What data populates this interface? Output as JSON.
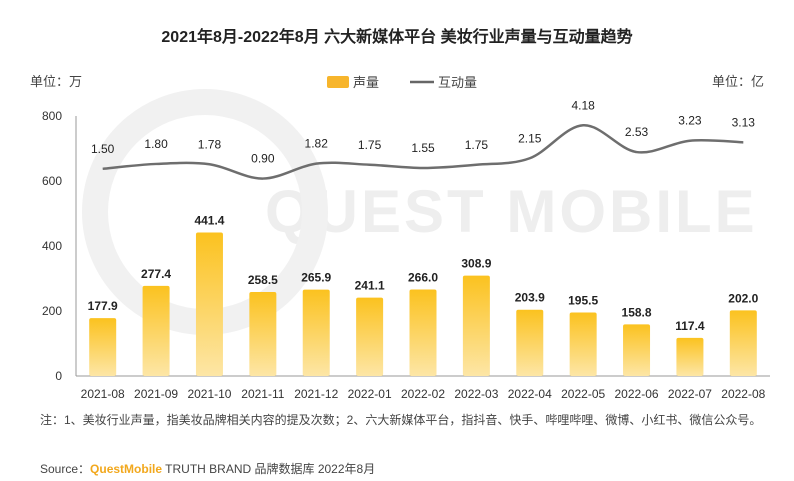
{
  "header": {
    "title": "2021年8月-2022年8月 六大新媒体平台 美妆行业声量与互动量趋势",
    "unit_left": "单位：万",
    "unit_right": "单位：亿"
  },
  "watermark": "QUEST MOBILE",
  "chart_data": {
    "type": "bar+line",
    "categories": [
      "2021-08",
      "2021-09",
      "2021-10",
      "2021-11",
      "2021-12",
      "2022-01",
      "2022-02",
      "2022-03",
      "2022-04",
      "2022-05",
      "2022-06",
      "2022-07",
      "2022-08"
    ],
    "series": [
      {
        "name": "声量",
        "type": "bar",
        "axis": "left",
        "color": "#f7b52c",
        "values": [
          177.9,
          277.4,
          441.4,
          258.5,
          265.9,
          241.1,
          266.0,
          308.9,
          203.9,
          195.5,
          158.8,
          117.4,
          202.0
        ]
      },
      {
        "name": "互动量",
        "type": "line",
        "axis": "right",
        "color": "#666666",
        "values": [
          1.5,
          1.8,
          1.78,
          0.9,
          1.82,
          1.75,
          1.55,
          1.75,
          2.15,
          4.18,
          2.53,
          3.23,
          3.13
        ]
      }
    ],
    "y_left": {
      "ticks": [
        0,
        200,
        400,
        600,
        800
      ],
      "range": [
        0,
        800
      ]
    },
    "y_right": {
      "range": [
        -11.25,
        4.75
      ],
      "ticks_shown": false
    },
    "legend_placement": "top-center",
    "grid": false
  },
  "footer": {
    "note": "注：1、美妆行业声量，指美妆品牌相关内容的提及次数；2、六大新媒体平台，指抖音、快手、哔哩哔哩、微博、小红书、微信公众号。",
    "source_prefix": "Source：",
    "source_brand": "QuestMobile",
    "source_rest": " TRUTH BRAND 品牌数据库 2022年8月"
  }
}
